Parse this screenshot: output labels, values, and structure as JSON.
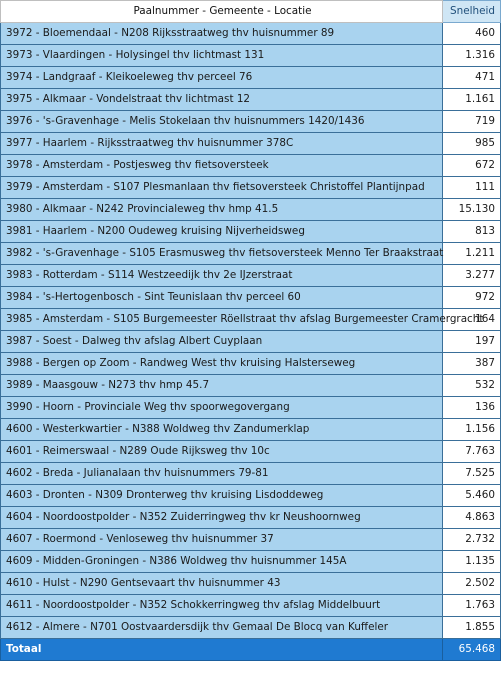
{
  "header": {
    "col1": "Paalnummer - Gemeente - Locatie",
    "col2": "Snelheid"
  },
  "rows": [
    {
      "loc": "3972 - Bloemendaal - N208 Rijksstraatweg thv huisnummer 89",
      "val": "460"
    },
    {
      "loc": "3973 - Vlaardingen - Holysingel thv lichtmast 131",
      "val": "1.316"
    },
    {
      "loc": "3974 - Landgraaf - Kleikoeleweg thv perceel 76",
      "val": "471"
    },
    {
      "loc": "3975 - Alkmaar - Vondelstraat thv lichtmast 12",
      "val": "1.161"
    },
    {
      "loc": "3976 - 's-Gravenhage - Melis Stokelaan thv huisnummers 1420/1436",
      "val": "719"
    },
    {
      "loc": "3977 - Haarlem - Rijksstraatweg thv huisnummer 378C",
      "val": "985"
    },
    {
      "loc": "3978 - Amsterdam - Postjesweg thv fietsoversteek",
      "val": "672"
    },
    {
      "loc": "3979 - Amsterdam - S107 Plesmanlaan thv fietsoversteek Christoffel Plantijnpad",
      "val": "111"
    },
    {
      "loc": "3980 - Alkmaar - N242 Provincialeweg thv hmp 41.5",
      "val": "15.130"
    },
    {
      "loc": "3981 - Haarlem - N200 Oudeweg kruising Nijverheidsweg",
      "val": "813"
    },
    {
      "loc": "3982 - 's-Gravenhage - S105 Erasmusweg thv fietsoversteek Menno Ter Braakstraat",
      "val": "1.211"
    },
    {
      "loc": "3983 - Rotterdam - S114 Westzeedijk thv 2e IJzerstraat",
      "val": "3.277"
    },
    {
      "loc": "3984 - 's-Hertogenbosch - Sint Teunislaan thv perceel 60",
      "val": "972"
    },
    {
      "loc": "3985 - Amsterdam - S105 Burgemeester Röellstraat thv afslag Burgemeester Cramergracht",
      "val": "164"
    },
    {
      "loc": "3987 - Soest - Dalweg thv afslag Albert Cuyplaan",
      "val": "197"
    },
    {
      "loc": "3988 - Bergen op Zoom - Randweg West thv kruising Halsterseweg",
      "val": "387"
    },
    {
      "loc": "3989 - Maasgouw - N273 thv hmp 45.7",
      "val": "532"
    },
    {
      "loc": "3990 - Hoorn - Provinciale Weg thv spoorwegovergang",
      "val": "136"
    },
    {
      "loc": "4600 - Westerkwartier - N388 Woldweg thv Zandumerklap",
      "val": "1.156"
    },
    {
      "loc": "4601 - Reimerswaal - N289 Oude Rijksweg thv 10c",
      "val": "7.763"
    },
    {
      "loc": "4602 - Breda - Julianalaan thv huisnummers 79-81",
      "val": "7.525"
    },
    {
      "loc": "4603 - Dronten - N309 Dronterweg thv kruising Lisdoddeweg",
      "val": "5.460"
    },
    {
      "loc": "4604 - Noordoostpolder - N352 Zuiderringweg thv kr Neushoornweg",
      "val": "4.863"
    },
    {
      "loc": "4607 - Roermond - Venloseweg thv huisnummer 37",
      "val": "2.732"
    },
    {
      "loc": "4609 - Midden-Groningen - N386 Woldweg thv huisnummer 145A",
      "val": "1.135"
    },
    {
      "loc": "4610 - Hulst - N290 Gentsevaart thv huisnummer 43",
      "val": "2.502"
    },
    {
      "loc": "4611 - Noordoostpolder - N352 Schokkerringweg thv afslag Middelbuurt",
      "val": "1.763"
    },
    {
      "loc": "4612 - Almere - N701 Oostvaardersdijk thv Gemaal De Blocq van Kuffeler",
      "val": "1.855"
    }
  ],
  "total": {
    "label": "Totaal",
    "val": "65.468"
  }
}
